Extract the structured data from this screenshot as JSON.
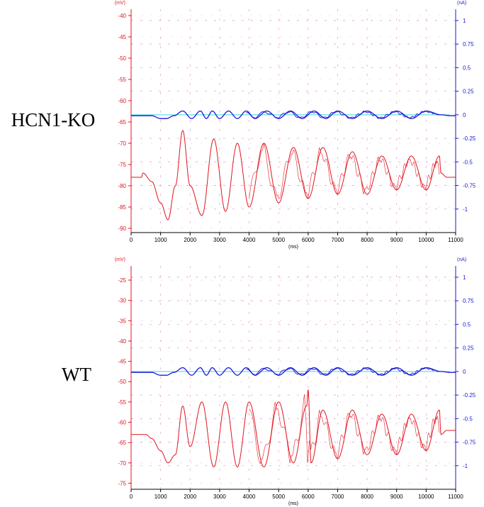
{
  "chart_data": [
    {
      "type": "line",
      "panel_label": "HCN1-KO",
      "left_axis": {
        "unit": "(mV)",
        "ylim": [
          -91,
          -38.5
        ],
        "ticks": [
          -40,
          -45,
          -50,
          -55,
          -60,
          -65,
          -70,
          -75,
          -80,
          -85,
          -90
        ],
        "color": "#e0141e"
      },
      "right_axis": {
        "unit": "(nA)",
        "ylim": [
          -1.25,
          1.12
        ],
        "ticks": [
          1,
          0.75,
          0.5,
          0.25,
          0,
          -0.25,
          -0.5,
          -0.75,
          -1
        ],
        "color": "#1a1ad6"
      },
      "x_axis": {
        "unit": "(ms)",
        "xlim": [
          0,
          11000
        ],
        "ticks": [
          0,
          1000,
          2000,
          3000,
          4000,
          5000,
          6000,
          7000,
          8000,
          9000,
          10000,
          11000
        ]
      },
      "grid": true,
      "series": [
        {
          "axis": "right",
          "color": "#1a1ad6",
          "x": [
            0,
            300,
            700,
            1000,
            1200,
            1450,
            1750,
            2050,
            2350,
            2550,
            2750,
            3000,
            3300,
            3600,
            3900,
            4200,
            4600,
            5000,
            5400,
            5800,
            6200,
            6600,
            7000,
            7500,
            8000,
            8500,
            9000,
            9500,
            10000,
            10500,
            10800,
            11000
          ],
          "y": [
            -0.01,
            -0.01,
            -0.01,
            -0.04,
            -0.04,
            -0.01,
            0.04,
            -0.04,
            0.04,
            -0.04,
            0.04,
            -0.04,
            0.04,
            -0.04,
            0.04,
            -0.04,
            0.04,
            -0.04,
            0.04,
            -0.04,
            0.04,
            -0.04,
            0.04,
            -0.04,
            0.04,
            -0.04,
            0.04,
            -0.04,
            0.04,
            0.0,
            -0.01,
            -0.01
          ]
        },
        {
          "axis": "left",
          "color": "#e0141e",
          "x": [
            0,
            350,
            400,
            700,
            1000,
            1250,
            1500,
            1750,
            2000,
            2400,
            2800,
            3200,
            3600,
            4000,
            4500,
            5000,
            5500,
            6000,
            6500,
            7000,
            7500,
            8000,
            8500,
            9000,
            9500,
            10000,
            10450,
            10500,
            10700,
            11000
          ],
          "y": [
            -78,
            -78,
            -77,
            -79,
            -84,
            -88,
            -80,
            -67,
            -80,
            -87,
            -69,
            -86,
            -70,
            -85,
            -70,
            -84,
            -71,
            -83,
            -71,
            -82,
            -72,
            -82,
            -73,
            -81,
            -73,
            -81,
            -73,
            -77,
            -78,
            -78
          ]
        }
      ]
    },
    {
      "type": "line",
      "panel_label": "WT",
      "left_axis": {
        "unit": "(mV)",
        "ylim": [
          -76.5,
          -21.5
        ],
        "ticks": [
          -25,
          -30,
          -35,
          -40,
          -45,
          -50,
          -55,
          -60,
          -65,
          -70,
          -75
        ],
        "color": "#e0141e"
      },
      "right_axis": {
        "unit": "(nA)",
        "ylim": [
          -1.25,
          1.12
        ],
        "ticks": [
          1,
          0.75,
          0.5,
          0.25,
          0,
          -0.25,
          -0.5,
          -0.75,
          -1
        ],
        "color": "#1a1ad6"
      },
      "x_axis": {
        "unit": "(ms)",
        "xlim": [
          0,
          11000
        ],
        "ticks": [
          0,
          1000,
          2000,
          3000,
          4000,
          5000,
          6000,
          7000,
          8000,
          9000,
          10000,
          11000
        ]
      },
      "grid": true,
      "series": [
        {
          "axis": "right",
          "color": "#1a1ad6",
          "x": [
            0,
            300,
            700,
            1000,
            1200,
            1450,
            1750,
            2050,
            2350,
            2550,
            2750,
            3000,
            3300,
            3600,
            3900,
            4200,
            4600,
            5000,
            5400,
            5800,
            6200,
            6600,
            7000,
            7500,
            8000,
            8500,
            9000,
            9500,
            10000,
            10500,
            10800,
            11000
          ],
          "y": [
            -0.01,
            -0.01,
            -0.01,
            -0.04,
            -0.04,
            -0.01,
            0.04,
            -0.04,
            0.04,
            -0.04,
            0.04,
            -0.04,
            0.04,
            -0.04,
            0.04,
            -0.04,
            0.04,
            -0.04,
            0.04,
            -0.04,
            0.04,
            -0.04,
            0.04,
            -0.04,
            0.04,
            -0.04,
            0.04,
            -0.04,
            0.04,
            0.0,
            -0.01,
            -0.01
          ]
        },
        {
          "axis": "left",
          "color": "#e0141e",
          "x": [
            0,
            500,
            700,
            1000,
            1250,
            1500,
            1750,
            2000,
            2400,
            2800,
            3200,
            3600,
            4000,
            4500,
            5000,
            5500,
            5950,
            6000,
            6100,
            6500,
            7000,
            7500,
            8000,
            8500,
            9000,
            9500,
            10000,
            10450,
            10500,
            10700,
            11000
          ],
          "y": [
            -63,
            -63,
            -64,
            -67,
            -70,
            -68,
            -56,
            -66,
            -55,
            -71,
            -55,
            -71,
            -55,
            -71,
            -55,
            -70,
            -56,
            -52,
            -70,
            -57,
            -69,
            -57,
            -68,
            -58,
            -68,
            -58,
            -67,
            -57,
            -63,
            -62,
            -62
          ]
        }
      ]
    }
  ]
}
